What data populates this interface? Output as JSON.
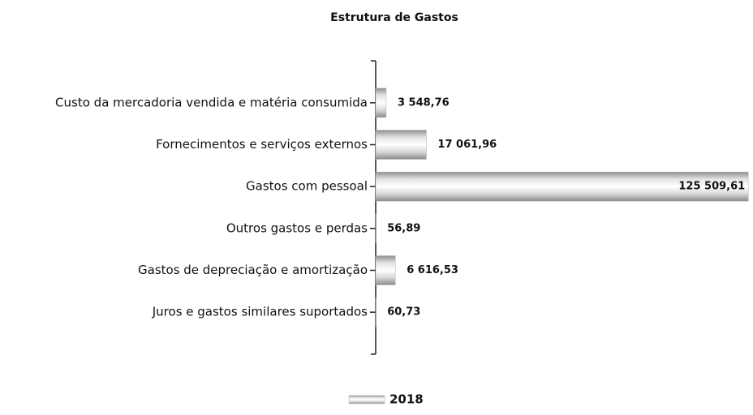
{
  "chart_data": {
    "type": "hbar",
    "title": "Estrutura de Gastos",
    "categories": [
      "Custo da mercadoria vendida e matéria consumida",
      "Fornecimentos e serviços externos",
      "Gastos com pessoal",
      "Outros gastos e perdas",
      "Gastos de depreciação e amortização",
      "Juros e gastos similares suportados"
    ],
    "series": [
      {
        "name": "2018",
        "color": "#b3b3b3",
        "values": [
          3548.76,
          17061.96,
          125509.61,
          56.89,
          6616.53,
          60.73
        ],
        "value_labels": [
          "3 548,76",
          "17 061,96",
          "125 509,61",
          "56,89",
          "6 616,53",
          "60,73"
        ]
      }
    ],
    "xlim": [
      0,
      126000
    ],
    "legend": "bottom"
  }
}
